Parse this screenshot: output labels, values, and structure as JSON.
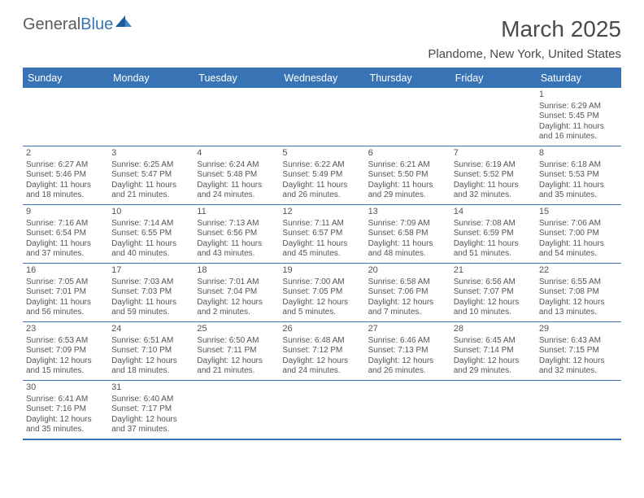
{
  "logo": {
    "text_general": "General",
    "text_blue": "Blue"
  },
  "title": "March 2025",
  "location": "Plandome, New York, United States",
  "colors": {
    "header_bg": "#3874b5",
    "header_text": "#ffffff",
    "border": "#3874b5",
    "cell_text": "#555555",
    "page_bg": "#ffffff"
  },
  "weekdays": [
    "Sunday",
    "Monday",
    "Tuesday",
    "Wednesday",
    "Thursday",
    "Friday",
    "Saturday"
  ],
  "layout": {
    "first_weekday_index": 6,
    "days_in_month": 31
  },
  "days": {
    "1": {
      "sunrise": "6:29 AM",
      "sunset": "5:45 PM",
      "daylight": "11 hours and 16 minutes."
    },
    "2": {
      "sunrise": "6:27 AM",
      "sunset": "5:46 PM",
      "daylight": "11 hours and 18 minutes."
    },
    "3": {
      "sunrise": "6:25 AM",
      "sunset": "5:47 PM",
      "daylight": "11 hours and 21 minutes."
    },
    "4": {
      "sunrise": "6:24 AM",
      "sunset": "5:48 PM",
      "daylight": "11 hours and 24 minutes."
    },
    "5": {
      "sunrise": "6:22 AM",
      "sunset": "5:49 PM",
      "daylight": "11 hours and 26 minutes."
    },
    "6": {
      "sunrise": "6:21 AM",
      "sunset": "5:50 PM",
      "daylight": "11 hours and 29 minutes."
    },
    "7": {
      "sunrise": "6:19 AM",
      "sunset": "5:52 PM",
      "daylight": "11 hours and 32 minutes."
    },
    "8": {
      "sunrise": "6:18 AM",
      "sunset": "5:53 PM",
      "daylight": "11 hours and 35 minutes."
    },
    "9": {
      "sunrise": "7:16 AM",
      "sunset": "6:54 PM",
      "daylight": "11 hours and 37 minutes."
    },
    "10": {
      "sunrise": "7:14 AM",
      "sunset": "6:55 PM",
      "daylight": "11 hours and 40 minutes."
    },
    "11": {
      "sunrise": "7:13 AM",
      "sunset": "6:56 PM",
      "daylight": "11 hours and 43 minutes."
    },
    "12": {
      "sunrise": "7:11 AM",
      "sunset": "6:57 PM",
      "daylight": "11 hours and 45 minutes."
    },
    "13": {
      "sunrise": "7:09 AM",
      "sunset": "6:58 PM",
      "daylight": "11 hours and 48 minutes."
    },
    "14": {
      "sunrise": "7:08 AM",
      "sunset": "6:59 PM",
      "daylight": "11 hours and 51 minutes."
    },
    "15": {
      "sunrise": "7:06 AM",
      "sunset": "7:00 PM",
      "daylight": "11 hours and 54 minutes."
    },
    "16": {
      "sunrise": "7:05 AM",
      "sunset": "7:01 PM",
      "daylight": "11 hours and 56 minutes."
    },
    "17": {
      "sunrise": "7:03 AM",
      "sunset": "7:03 PM",
      "daylight": "11 hours and 59 minutes."
    },
    "18": {
      "sunrise": "7:01 AM",
      "sunset": "7:04 PM",
      "daylight": "12 hours and 2 minutes."
    },
    "19": {
      "sunrise": "7:00 AM",
      "sunset": "7:05 PM",
      "daylight": "12 hours and 5 minutes."
    },
    "20": {
      "sunrise": "6:58 AM",
      "sunset": "7:06 PM",
      "daylight": "12 hours and 7 minutes."
    },
    "21": {
      "sunrise": "6:56 AM",
      "sunset": "7:07 PM",
      "daylight": "12 hours and 10 minutes."
    },
    "22": {
      "sunrise": "6:55 AM",
      "sunset": "7:08 PM",
      "daylight": "12 hours and 13 minutes."
    },
    "23": {
      "sunrise": "6:53 AM",
      "sunset": "7:09 PM",
      "daylight": "12 hours and 15 minutes."
    },
    "24": {
      "sunrise": "6:51 AM",
      "sunset": "7:10 PM",
      "daylight": "12 hours and 18 minutes."
    },
    "25": {
      "sunrise": "6:50 AM",
      "sunset": "7:11 PM",
      "daylight": "12 hours and 21 minutes."
    },
    "26": {
      "sunrise": "6:48 AM",
      "sunset": "7:12 PM",
      "daylight": "12 hours and 24 minutes."
    },
    "27": {
      "sunrise": "6:46 AM",
      "sunset": "7:13 PM",
      "daylight": "12 hours and 26 minutes."
    },
    "28": {
      "sunrise": "6:45 AM",
      "sunset": "7:14 PM",
      "daylight": "12 hours and 29 minutes."
    },
    "29": {
      "sunrise": "6:43 AM",
      "sunset": "7:15 PM",
      "daylight": "12 hours and 32 minutes."
    },
    "30": {
      "sunrise": "6:41 AM",
      "sunset": "7:16 PM",
      "daylight": "12 hours and 35 minutes."
    },
    "31": {
      "sunrise": "6:40 AM",
      "sunset": "7:17 PM",
      "daylight": "12 hours and 37 minutes."
    }
  },
  "labels": {
    "sunrise": "Sunrise:",
    "sunset": "Sunset:",
    "daylight": "Daylight:"
  }
}
